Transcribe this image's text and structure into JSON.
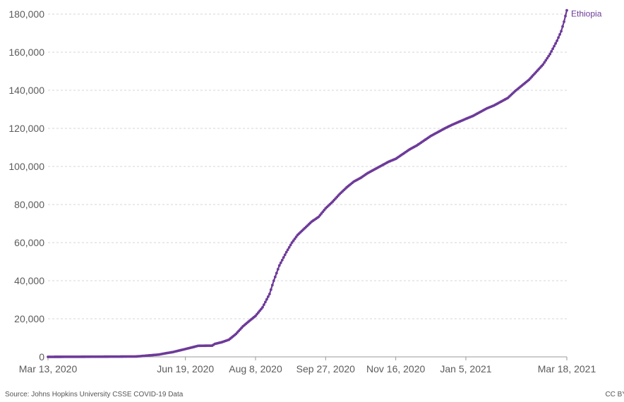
{
  "chart_data": {
    "type": "line",
    "series": [
      {
        "name": "Ethiopia",
        "color": "#6d3a99",
        "points": [
          [
            "2020-03-13",
            0
          ],
          [
            "2020-04-20",
            100
          ],
          [
            "2020-05-15",
            200
          ],
          [
            "2020-05-20",
            500
          ],
          [
            "2020-05-31",
            1200
          ],
          [
            "2020-06-05",
            1900
          ],
          [
            "2020-06-10",
            2500
          ],
          [
            "2020-06-15",
            3400
          ],
          [
            "2020-06-20",
            4300
          ],
          [
            "2020-06-25",
            5200
          ],
          [
            "2020-06-28",
            5800
          ],
          [
            "2020-07-08",
            5900
          ],
          [
            "2020-07-10",
            6800
          ],
          [
            "2020-07-15",
            7700
          ],
          [
            "2020-07-20",
            9000
          ],
          [
            "2020-07-25",
            12000
          ],
          [
            "2020-07-30",
            16000
          ],
          [
            "2020-08-03",
            18500
          ],
          [
            "2020-08-08",
            21500
          ],
          [
            "2020-08-13",
            26000
          ],
          [
            "2020-08-18",
            33000
          ],
          [
            "2020-08-21",
            40000
          ],
          [
            "2020-08-25",
            48000
          ],
          [
            "2020-08-30",
            55000
          ],
          [
            "2020-09-03",
            60000
          ],
          [
            "2020-09-07",
            64000
          ],
          [
            "2020-09-12",
            67500
          ],
          [
            "2020-09-17",
            71000
          ],
          [
            "2020-09-22",
            73500
          ],
          [
            "2020-09-27",
            78000
          ],
          [
            "2020-10-02",
            81500
          ],
          [
            "2020-10-07",
            85500
          ],
          [
            "2020-10-12",
            89000
          ],
          [
            "2020-10-17",
            92000
          ],
          [
            "2020-10-22",
            94000
          ],
          [
            "2020-10-27",
            96500
          ],
          [
            "2020-11-01",
            98500
          ],
          [
            "2020-11-06",
            100500
          ],
          [
            "2020-11-11",
            102500
          ],
          [
            "2020-11-16",
            104000
          ],
          [
            "2020-11-21",
            106500
          ],
          [
            "2020-11-26",
            109000
          ],
          [
            "2020-12-01",
            111000
          ],
          [
            "2020-12-06",
            113500
          ],
          [
            "2020-12-11",
            116000
          ],
          [
            "2020-12-16",
            118000
          ],
          [
            "2020-12-21",
            120000
          ],
          [
            "2020-12-26",
            121800
          ],
          [
            "2021-01-05",
            125000
          ],
          [
            "2021-01-10",
            126500
          ],
          [
            "2021-01-15",
            128500
          ],
          [
            "2021-01-20",
            130500
          ],
          [
            "2021-01-25",
            132000
          ],
          [
            "2021-01-30",
            134000
          ],
          [
            "2021-02-04",
            136000
          ],
          [
            "2021-02-09",
            139500
          ],
          [
            "2021-02-14",
            142500
          ],
          [
            "2021-02-19",
            145500
          ],
          [
            "2021-02-24",
            149500
          ],
          [
            "2021-03-01",
            153500
          ],
          [
            "2021-03-06",
            159000
          ],
          [
            "2021-03-11",
            166000
          ],
          [
            "2021-03-14",
            171000
          ],
          [
            "2021-03-16",
            176000
          ],
          [
            "2021-03-18",
            182000
          ]
        ]
      }
    ],
    "x_ticks": [
      "Mar 13, 2020",
      "Jun 19, 2020",
      "Aug 8, 2020",
      "Sep 27, 2020",
      "Nov 16, 2020",
      "Jan 5, 2021",
      "Mar 18, 2021"
    ],
    "x_tick_dates": [
      "2020-03-13",
      "2020-06-19",
      "2020-08-08",
      "2020-09-27",
      "2020-11-16",
      "2021-01-05",
      "2021-03-18"
    ],
    "y_ticks": [
      "0",
      "20,000",
      "40,000",
      "60,000",
      "80,000",
      "100,000",
      "120,000",
      "140,000",
      "160,000",
      "180,000"
    ],
    "y_tick_values": [
      0,
      20000,
      40000,
      60000,
      80000,
      100000,
      120000,
      140000,
      160000,
      180000
    ],
    "xlim": [
      "2020-03-13",
      "2021-03-18"
    ],
    "ylim": [
      0,
      180000
    ],
    "grid": true,
    "legend": "end-of-line label",
    "title": "",
    "xlabel": "",
    "ylabel": ""
  },
  "footer": {
    "source": "Source: Johns Hopkins University CSSE COVID-19 Data",
    "license": "CC BY"
  }
}
